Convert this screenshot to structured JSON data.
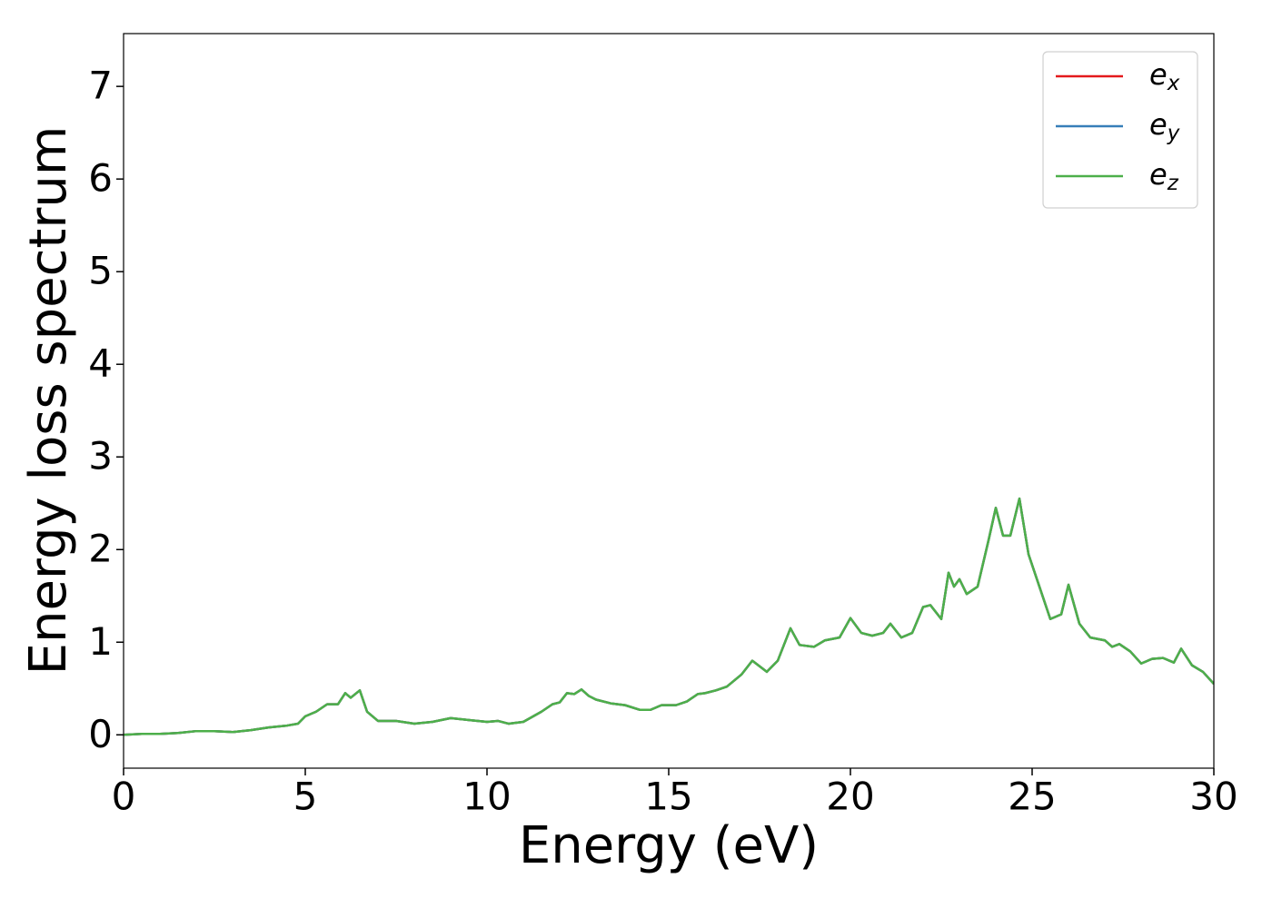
{
  "chart_data": {
    "type": "line",
    "xlabel": "Energy (eV)",
    "ylabel": "Energy loss spectrum",
    "x": [
      0,
      0.5,
      1,
      1.5,
      2,
      2.5,
      3,
      3.5,
      4,
      4.5,
      4.8,
      5,
      5.3,
      5.6,
      5.9,
      6.1,
      6.25,
      6.5,
      6.7,
      7,
      7.5,
      8,
      8.5,
      9,
      9.5,
      10,
      10.3,
      10.6,
      11,
      11.5,
      11.8,
      12,
      12.2,
      12.4,
      12.6,
      12.8,
      13,
      13.4,
      13.8,
      14.2,
      14.5,
      14.8,
      15.2,
      15.5,
      15.8,
      16,
      16.3,
      16.6,
      17,
      17.3,
      17.7,
      18,
      18.35,
      18.6,
      19,
      19.3,
      19.7,
      20,
      20.3,
      20.6,
      20.9,
      21.1,
      21.4,
      21.7,
      22,
      22.2,
      22.5,
      22.7,
      22.85,
      23,
      23.2,
      23.5,
      23.8,
      24,
      24.2,
      24.4,
      24.65,
      24.9,
      25.2,
      25.5,
      25.8,
      26,
      26.3,
      26.6,
      27,
      27.2,
      27.4,
      27.7,
      28,
      28.3,
      28.6,
      28.9,
      29.1,
      29.4,
      29.7,
      30
    ],
    "series": [
      {
        "name": "ex",
        "color": "#e41a1c",
        "values": [
          0,
          0.01,
          0.01,
          0.02,
          0.04,
          0.04,
          0.03,
          0.05,
          0.08,
          0.1,
          0.12,
          0.2,
          0.25,
          0.33,
          0.33,
          0.45,
          0.4,
          0.48,
          0.25,
          0.15,
          0.15,
          0.12,
          0.14,
          0.18,
          0.16,
          0.14,
          0.15,
          0.12,
          0.14,
          0.25,
          0.33,
          0.35,
          0.45,
          0.44,
          0.49,
          0.42,
          0.38,
          0.34,
          0.32,
          0.27,
          0.27,
          0.32,
          0.32,
          0.36,
          0.44,
          0.45,
          0.48,
          0.52,
          0.65,
          0.8,
          0.68,
          0.8,
          1.15,
          0.97,
          0.95,
          1.02,
          1.05,
          1.26,
          1.1,
          1.07,
          1.1,
          1.2,
          1.05,
          1.1,
          1.38,
          1.4,
          1.25,
          1.75,
          1.6,
          1.68,
          1.52,
          1.6,
          2.1,
          2.45,
          2.15,
          2.15,
          2.55,
          1.95,
          1.6,
          1.25,
          1.3,
          1.62,
          1.2,
          1.05,
          1.02,
          0.95,
          0.98,
          0.9,
          0.77,
          0.82,
          0.83,
          0.78,
          0.93,
          0.75,
          0.68,
          0.55
        ]
      },
      {
        "name": "ey",
        "color": "#377eb8",
        "values": [
          0,
          0.01,
          0.01,
          0.02,
          0.04,
          0.04,
          0.03,
          0.05,
          0.08,
          0.1,
          0.12,
          0.2,
          0.25,
          0.33,
          0.33,
          0.45,
          0.4,
          0.48,
          0.25,
          0.15,
          0.15,
          0.12,
          0.14,
          0.18,
          0.16,
          0.14,
          0.15,
          0.12,
          0.14,
          0.25,
          0.33,
          0.35,
          0.45,
          0.44,
          0.49,
          0.42,
          0.38,
          0.34,
          0.32,
          0.27,
          0.27,
          0.32,
          0.32,
          0.36,
          0.44,
          0.45,
          0.48,
          0.52,
          0.65,
          0.8,
          0.68,
          0.8,
          1.15,
          0.97,
          0.95,
          1.02,
          1.05,
          1.26,
          1.1,
          1.07,
          1.1,
          1.2,
          1.05,
          1.1,
          1.38,
          1.4,
          1.25,
          1.75,
          1.6,
          1.68,
          1.52,
          1.6,
          2.1,
          2.45,
          2.15,
          2.15,
          2.55,
          1.95,
          1.6,
          1.25,
          1.3,
          1.62,
          1.2,
          1.05,
          1.02,
          0.95,
          0.98,
          0.9,
          0.77,
          0.82,
          0.83,
          0.78,
          0.93,
          0.75,
          0.68,
          0.55
        ]
      },
      {
        "name": "ez",
        "color": "#4daf4a",
        "values": [
          0,
          0.01,
          0.01,
          0.02,
          0.04,
          0.04,
          0.03,
          0.05,
          0.08,
          0.1,
          0.12,
          0.2,
          0.25,
          0.33,
          0.33,
          0.45,
          0.4,
          0.48,
          0.25,
          0.15,
          0.15,
          0.12,
          0.14,
          0.18,
          0.16,
          0.14,
          0.15,
          0.12,
          0.14,
          0.25,
          0.33,
          0.35,
          0.45,
          0.44,
          0.49,
          0.42,
          0.38,
          0.34,
          0.32,
          0.27,
          0.27,
          0.32,
          0.32,
          0.36,
          0.44,
          0.45,
          0.48,
          0.52,
          0.65,
          0.8,
          0.68,
          0.8,
          1.15,
          0.97,
          0.95,
          1.02,
          1.05,
          1.26,
          1.1,
          1.07,
          1.1,
          1.2,
          1.05,
          1.1,
          1.38,
          1.4,
          1.25,
          1.75,
          1.6,
          1.68,
          1.52,
          1.6,
          2.1,
          2.45,
          2.15,
          2.15,
          2.55,
          1.95,
          1.6,
          1.25,
          1.3,
          1.62,
          1.2,
          1.05,
          1.02,
          0.95,
          0.98,
          0.9,
          0.77,
          0.82,
          0.83,
          0.78,
          0.93,
          0.75,
          0.68,
          0.55
        ]
      }
    ],
    "xlim": [
      0,
      30
    ],
    "xticks": [
      0,
      5,
      10,
      15,
      20,
      25,
      30
    ],
    "ylim": [
      -0.36,
      7.57
    ],
    "yticks": [
      0,
      1,
      2,
      3,
      4,
      5,
      6,
      7
    ],
    "grid": false,
    "legend": "upper right"
  }
}
